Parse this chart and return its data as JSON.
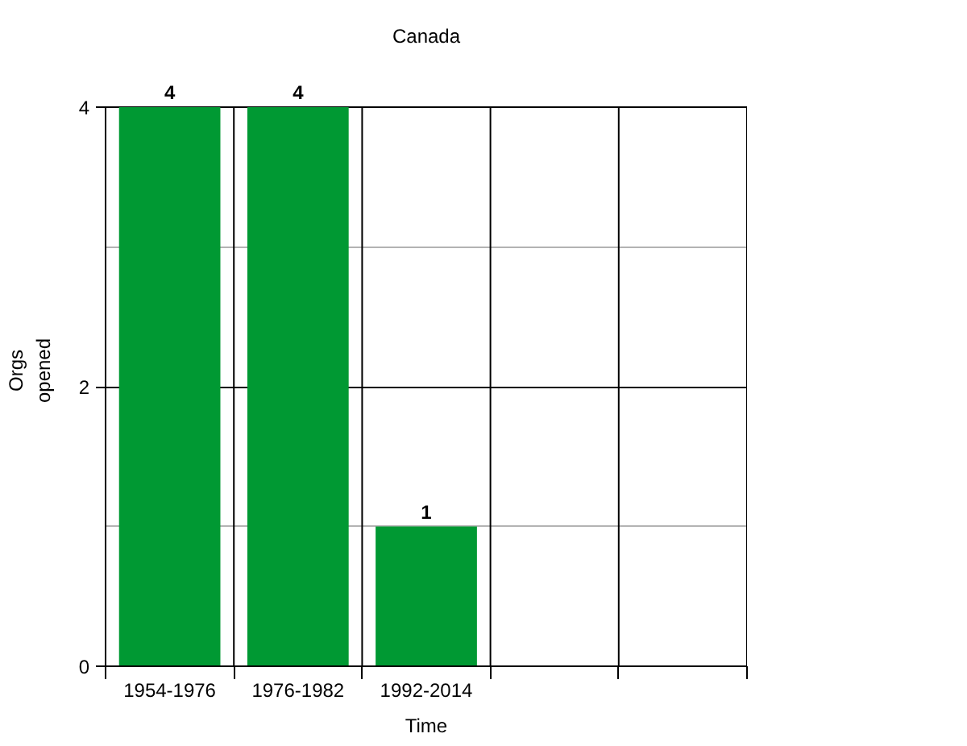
{
  "chart_data": {
    "type": "bar",
    "title": "Canada",
    "xlabel": "Time",
    "ylabel": "Orgs opened",
    "categories": [
      "1954-1976",
      "1976-1982",
      "1992-2014",
      null,
      null
    ],
    "series": [
      {
        "color": "#009933",
        "values": [
          4,
          4,
          1,
          null,
          null
        ]
      }
    ],
    "ylim": [
      0,
      4
    ],
    "yticks": [
      0,
      {
        "value": 1,
        "label": null
      },
      2,
      {
        "value": 3,
        "label": null
      },
      4
    ],
    "grid": true,
    "data_labels": true
  }
}
